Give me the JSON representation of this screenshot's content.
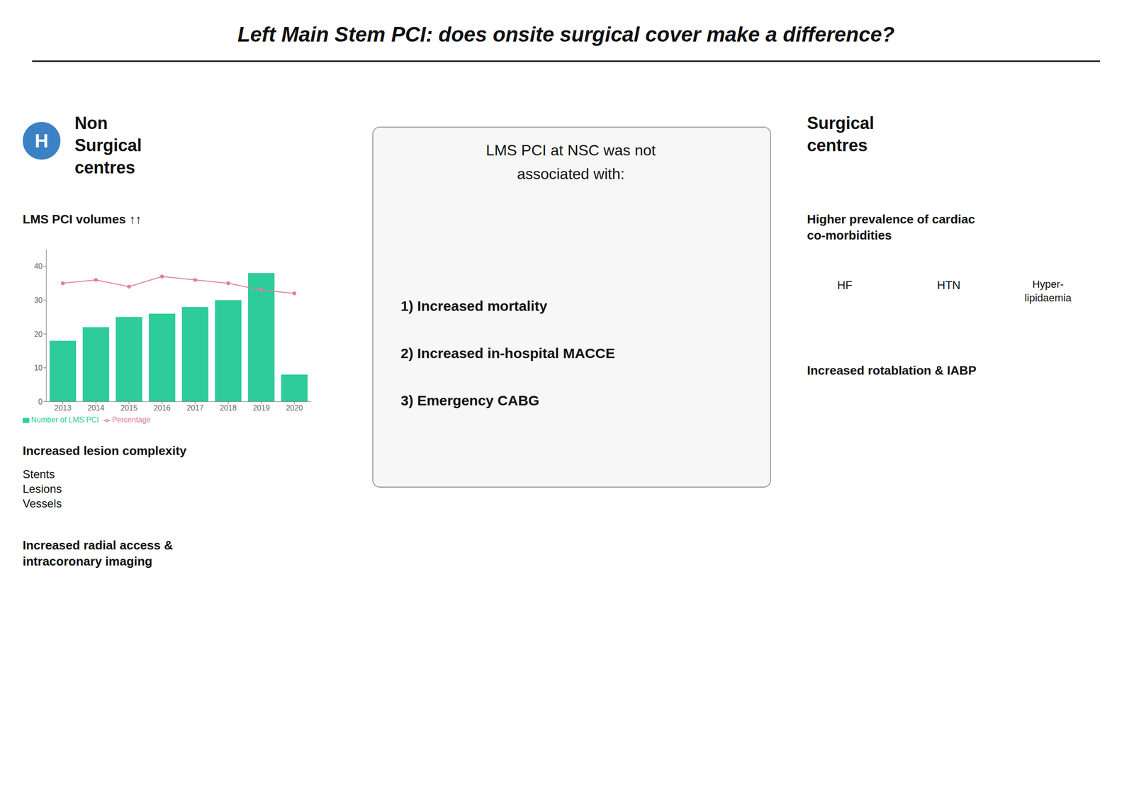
{
  "chart_data": {
    "type": "bar",
    "title": "Left Main Stem PCI: does onsite surgical cover make a difference?",
    "categories": [
      "2013",
      "2014",
      "2015",
      "2016",
      "2017",
      "2018",
      "2019",
      "2020"
    ],
    "series": [
      {
        "name": "Number of LMS PCI",
        "type": "bar",
        "color": "#2ecc9a",
        "values": [
          18,
          22,
          25,
          26,
          28,
          30,
          38,
          8
        ]
      },
      {
        "name": "Percentage",
        "type": "line",
        "color": "#e0809a",
        "marker": "circle",
        "values": [
          35,
          36,
          34,
          37,
          36,
          35,
          33,
          32
        ]
      }
    ],
    "ylim": [
      0,
      45
    ],
    "yticks": [
      0,
      10,
      20,
      30,
      40
    ],
    "grid": false,
    "legend": "lower left",
    "annotations": [
      "H",
      "Non\nSurgical\ncentres",
      "LMS PCI volumes ↑↑",
      "Increased lesion complexity",
      "Stents\nLesions\nVessels",
      "Increased radial access &\nintracoronary imaging",
      "LMS PCI at NSC was not",
      "associated with:",
      "1) Increased mortality",
      "2) Increased in-hospital MACCE",
      "3) Emergency CABG",
      "Surgical\ncentres",
      "Higher prevalence of cardiac\nco-morbidities",
      "HF",
      "HTN",
      "Hyper-\nlipidaemia",
      "Increased rotablation & IABP"
    ]
  }
}
